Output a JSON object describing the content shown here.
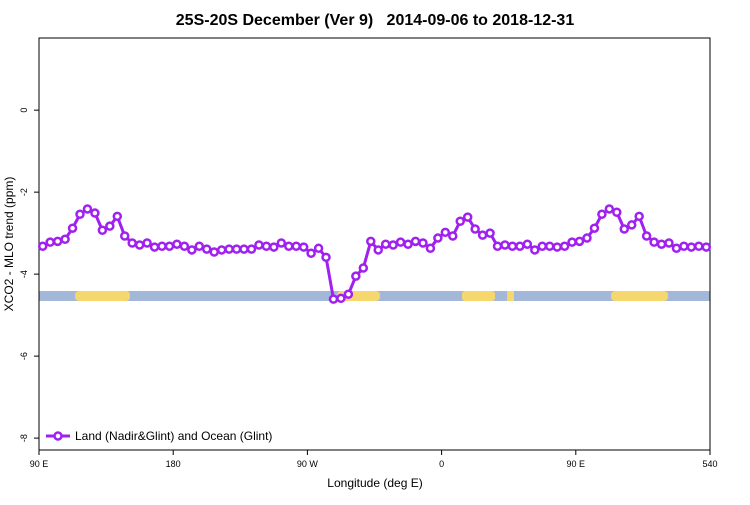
{
  "chart_data": {
    "type": "line",
    "title": "25S-20S December (Ver 9)   2014-09-06 to 2018-12-31",
    "x_label": "Longitude (deg E)",
    "y_label": "XCO2 - MLO trend (ppm)",
    "x": [
      92.5,
      97.5,
      102.5,
      107.5,
      112.5,
      117.5,
      122.5,
      127.5,
      132.5,
      137.5,
      142.5,
      147.5,
      152.5,
      157.5,
      162.5,
      167.5,
      172.5,
      177.5,
      182.5,
      187.5,
      192.5,
      197.5,
      202.5,
      207.5,
      212.5,
      217.5,
      222.5,
      227.5,
      232.5,
      237.5,
      242.5,
      247.5,
      252.5,
      257.5,
      262.5,
      267.5,
      272.5,
      277.5,
      282.5,
      287.5,
      292.5,
      297.5,
      302.5,
      307.5,
      312.5,
      317.5,
      322.5,
      327.5,
      332.5,
      337.5,
      342.5,
      347.5,
      352.5,
      357.5,
      362.5,
      367.5,
      372.5,
      377.5,
      382.5,
      387.5,
      392.5,
      397.5,
      402.5,
      407.5,
      412.5,
      417.5,
      422.5,
      427.5,
      432.5,
      437.5,
      442.5,
      447.5,
      452.5,
      457.5,
      462.5,
      467.5,
      472.5,
      477.5,
      482.5,
      487.5,
      492.5,
      497.5,
      502.5,
      507.5,
      512.5,
      517.5,
      522.5,
      527.5,
      532.5,
      537.5
    ],
    "series": [
      {
        "name": "Land (Nadir&Glint) and Ocean (Glint)",
        "color": "#a020f0",
        "values": [
          -3.32,
          -3.22,
          -3.2,
          -3.15,
          -2.88,
          -2.54,
          -2.41,
          -2.51,
          -2.93,
          -2.83,
          -2.59,
          -3.07,
          -3.24,
          -3.29,
          -3.24,
          -3.34,
          -3.32,
          -3.32,
          -3.27,
          -3.32,
          -3.41,
          -3.32,
          -3.39,
          -3.46,
          -3.41,
          -3.39,
          -3.39,
          -3.39,
          -3.39,
          -3.29,
          -3.32,
          -3.34,
          -3.24,
          -3.32,
          -3.32,
          -3.34,
          -3.49,
          -3.37,
          -3.59,
          -4.61,
          -4.59,
          -4.49,
          -4.05,
          -3.85,
          -3.2,
          -3.41,
          -3.27,
          -3.29,
          -3.22,
          -3.27,
          -3.2,
          -3.24,
          -3.37,
          -3.12,
          -2.98,
          -3.07,
          -2.71,
          -2.61,
          -2.9,
          -3.05,
          -3.0,
          -3.32,
          -3.29,
          -3.32,
          -3.32,
          -3.27,
          -3.41,
          -3.32,
          -3.32,
          -3.34,
          -3.32,
          -3.22,
          -3.2,
          -3.12,
          -2.88,
          -2.54,
          -2.41,
          -2.49,
          -2.9,
          -2.8,
          -2.59,
          -3.07,
          -3.22,
          -3.27,
          -3.24,
          -3.37,
          -3.32,
          -3.34,
          -3.32,
          -3.34
        ]
      }
    ],
    "xlim": [
      90,
      540
    ],
    "xticks": [
      {
        "value": 90,
        "label": "90 E"
      },
      180,
      {
        "value": 270,
        "label": "90 W"
      },
      {
        "value": 360,
        "label": "0"
      },
      {
        "value": 450,
        "label": "90 E"
      },
      540
    ],
    "ylim": [
      -8.29,
      1.76
    ],
    "yticks": [
      0,
      -2,
      -4,
      -6,
      -8
    ],
    "legend": "bottom-left"
  }
}
